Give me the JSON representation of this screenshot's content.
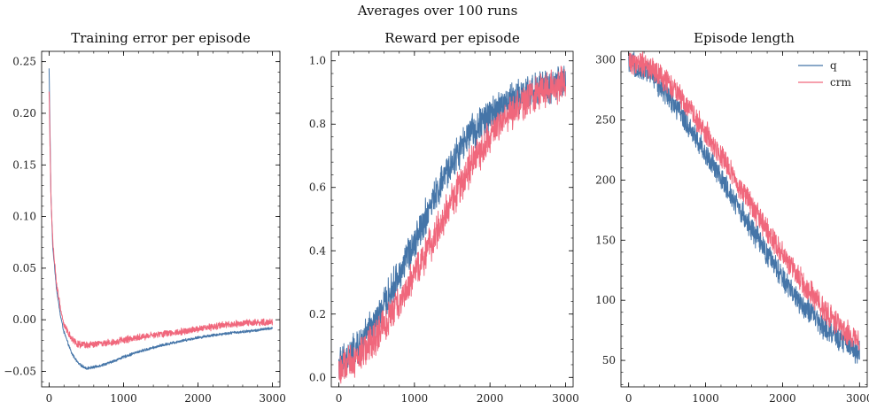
{
  "suptitle": "Averages over 100 runs",
  "colors": {
    "q": "#4575a8",
    "crm": "#f0677c"
  },
  "chart_data": [
    {
      "type": "line",
      "title": "Training error per episode",
      "xlabel": "",
      "ylabel": "",
      "xlim": [
        -100,
        3100
      ],
      "ylim": [
        -0.065,
        0.26
      ],
      "xticks": [
        0,
        1000,
        2000,
        3000
      ],
      "xtick_labels": [
        "0",
        "1000",
        "2000",
        "3000"
      ],
      "yticks": [
        -0.05,
        0.0,
        0.05,
        0.1,
        0.15,
        0.2,
        0.25
      ],
      "ytick_labels": [
        "−0.05",
        "0.00",
        "0.05",
        "0.10",
        "0.15",
        "0.20",
        "0.25"
      ],
      "grid": false,
      "legend": null,
      "series": [
        {
          "key": "q",
          "color": "#4575a8",
          "noise": 0.0012,
          "x": [
            0,
            25,
            50,
            100,
            150,
            200,
            300,
            400,
            500,
            600,
            800,
            1000,
            1200,
            1500,
            1800,
            2100,
            2400,
            2700,
            3000
          ],
          "y": [
            0.243,
            0.12,
            0.07,
            0.03,
            0.005,
            -0.012,
            -0.032,
            -0.043,
            -0.047,
            -0.046,
            -0.042,
            -0.036,
            -0.031,
            -0.025,
            -0.02,
            -0.016,
            -0.013,
            -0.011,
            -0.008
          ]
        },
        {
          "key": "crm",
          "color": "#f0677c",
          "noise": 0.003,
          "x": [
            0,
            25,
            50,
            100,
            150,
            200,
            300,
            400,
            500,
            600,
            800,
            1000,
            1200,
            1500,
            1800,
            2100,
            2400,
            2700,
            3000
          ],
          "y": [
            0.22,
            0.12,
            0.075,
            0.035,
            0.012,
            -0.005,
            -0.018,
            -0.024,
            -0.025,
            -0.024,
            -0.022,
            -0.02,
            -0.017,
            -0.014,
            -0.011,
            -0.008,
            -0.005,
            -0.003,
            -0.002
          ]
        }
      ]
    },
    {
      "type": "line",
      "title": "Reward per episode",
      "xlabel": "",
      "ylabel": "",
      "xlim": [
        -100,
        3100
      ],
      "ylim": [
        -0.03,
        1.03
      ],
      "xticks": [
        0,
        1000,
        2000,
        3000
      ],
      "xtick_labels": [
        "0",
        "1000",
        "2000",
        "3000"
      ],
      "yticks": [
        0.0,
        0.2,
        0.4,
        0.6,
        0.8,
        1.0
      ],
      "ytick_labels": [
        "0.0",
        "0.2",
        "0.4",
        "0.6",
        "0.8",
        "1.0"
      ],
      "grid": false,
      "legend": null,
      "series": [
        {
          "key": "q",
          "color": "#4575a8",
          "noise": 0.05,
          "x": [
            0,
            250,
            500,
            750,
            1000,
            1250,
            1500,
            1750,
            2000,
            2250,
            2500,
            2750,
            3000
          ],
          "y": [
            0.04,
            0.09,
            0.18,
            0.3,
            0.43,
            0.56,
            0.68,
            0.77,
            0.83,
            0.87,
            0.9,
            0.92,
            0.93
          ]
        },
        {
          "key": "crm",
          "color": "#f0677c",
          "noise": 0.05,
          "x": [
            0,
            250,
            500,
            750,
            1000,
            1250,
            1500,
            1750,
            2000,
            2250,
            2500,
            2750,
            3000
          ],
          "y": [
            0.02,
            0.06,
            0.13,
            0.22,
            0.32,
            0.44,
            0.56,
            0.67,
            0.76,
            0.83,
            0.88,
            0.91,
            0.93
          ]
        }
      ]
    },
    {
      "type": "line",
      "title": "Episode length",
      "xlabel": "",
      "ylabel": "",
      "xlim": [
        -100,
        3100
      ],
      "ylim": [
        28,
        307
      ],
      "xticks": [
        0,
        1000,
        2000,
        3000
      ],
      "xtick_labels": [
        "0",
        "1000",
        "2000",
        "3000"
      ],
      "yticks": [
        50,
        100,
        150,
        200,
        250,
        300
      ],
      "ytick_labels": [
        "50",
        "100",
        "150",
        "200",
        "250",
        "300"
      ],
      "grid": false,
      "legend": {
        "placement": "top-right",
        "entries": [
          {
            "label": "q",
            "key": "q"
          },
          {
            "label": "crm",
            "key": "crm"
          }
        ]
      },
      "series": [
        {
          "key": "q",
          "color": "#4575a8",
          "noise": 9,
          "x": [
            0,
            250,
            500,
            750,
            1000,
            1250,
            1500,
            1750,
            2000,
            2250,
            2500,
            2750,
            3000
          ],
          "y": [
            297,
            290,
            272,
            248,
            222,
            196,
            170,
            143,
            118,
            97,
            80,
            67,
            57
          ]
        },
        {
          "key": "crm",
          "color": "#f0677c",
          "noise": 9,
          "x": [
            0,
            250,
            500,
            750,
            1000,
            1250,
            1500,
            1750,
            2000,
            2250,
            2500,
            2750,
            3000
          ],
          "y": [
            299,
            295,
            282,
            263,
            240,
            215,
            189,
            163,
            138,
            115,
            95,
            78,
            65
          ]
        }
      ]
    }
  ]
}
